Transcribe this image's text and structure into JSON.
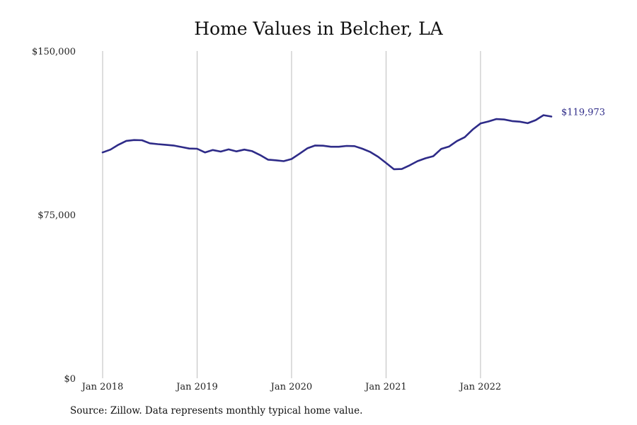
{
  "chart_data": {
    "type": "line",
    "title": "Home Values in Belcher, LA",
    "ylim": [
      0,
      150000
    ],
    "yticks": [
      0,
      75000,
      150000
    ],
    "ytick_labels": [
      "$0",
      "$75,000",
      "$150,000"
    ],
    "xlim": [
      "2018-01",
      "2022-10"
    ],
    "xticks": [
      "2018-01",
      "2019-01",
      "2020-01",
      "2021-01",
      "2022-01"
    ],
    "xtick_labels": [
      "Jan 2018",
      "Jan 2019",
      "Jan 2020",
      "Jan 2021",
      "Jan 2022"
    ],
    "grid": "vertical",
    "line_color": "#2e2b88",
    "end_label": "$119,973",
    "x": [
      "2018-01",
      "2018-02",
      "2018-03",
      "2018-04",
      "2018-05",
      "2018-06",
      "2018-07",
      "2018-08",
      "2018-09",
      "2018-10",
      "2018-11",
      "2018-12",
      "2019-01",
      "2019-02",
      "2019-03",
      "2019-04",
      "2019-05",
      "2019-06",
      "2019-07",
      "2019-08",
      "2019-09",
      "2019-10",
      "2019-11",
      "2019-12",
      "2020-01",
      "2020-02",
      "2020-03",
      "2020-04",
      "2020-05",
      "2020-06",
      "2020-07",
      "2020-08",
      "2020-09",
      "2020-10",
      "2020-11",
      "2020-12",
      "2021-01",
      "2021-02",
      "2021-03",
      "2021-04",
      "2021-05",
      "2021-06",
      "2021-07",
      "2021-08",
      "2021-09",
      "2021-10",
      "2021-11",
      "2021-12",
      "2022-01",
      "2022-02",
      "2022-03",
      "2022-04",
      "2022-05",
      "2022-06",
      "2022-07",
      "2022-08",
      "2022-09",
      "2022-10"
    ],
    "values": [
      103500,
      104800,
      107000,
      108800,
      109200,
      109100,
      107700,
      107300,
      107000,
      106700,
      106000,
      105300,
      105200,
      103500,
      104600,
      103900,
      104900,
      104000,
      104800,
      104100,
      102300,
      100200,
      99900,
      99500,
      100500,
      102900,
      105400,
      106700,
      106600,
      106100,
      106100,
      106500,
      106400,
      105200,
      103700,
      101500,
      98700,
      95800,
      95900,
      97600,
      99500,
      100800,
      101800,
      105100,
      106200,
      108700,
      110500,
      114000,
      116800,
      117700,
      118800,
      118600,
      117900,
      117600,
      116900,
      118300,
      120600,
      119973
    ]
  },
  "source": "Source: Zillow. Data represents monthly typical home value."
}
